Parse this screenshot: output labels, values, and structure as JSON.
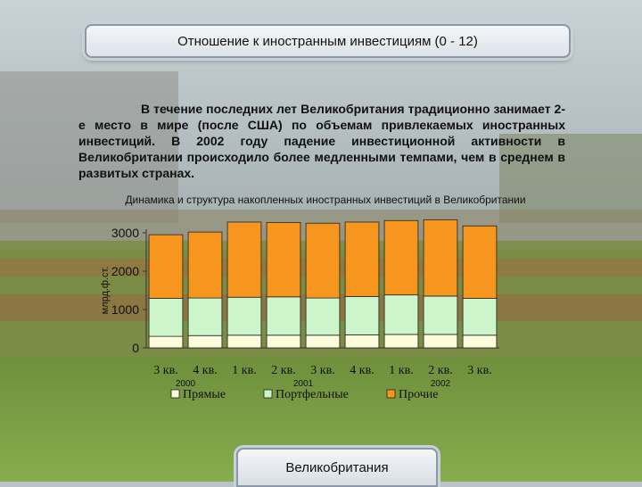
{
  "header": {
    "title": "Отношение к иностранным инвестициям (0 - 12)"
  },
  "intro_text": "В течение последних лет Великобритания традиционно занимает 2-е место в мире (после США) по объемам привлекаемых иностранных инвестиций. В 2002 году падение инвестиционной активности в Великобритании происходило более медленными темпами, чем в среднем в развитых странах.",
  "footer": {
    "label": "Великобритания"
  },
  "colors": {
    "direct": "#fcfcdc",
    "portfolio": "#ccf5cc",
    "other": "#f7961e"
  },
  "chart_data": {
    "type": "bar",
    "stacked": true,
    "title": "Динамика и структура накопленных иностранных инвестиций в Великобритании",
    "ylabel": "млрд.ф.ст.",
    "xlabel": "",
    "ylim": [
      0,
      3000
    ],
    "yticks": [
      0,
      1000,
      2000,
      3000
    ],
    "categories": [
      "3 кв.",
      "4 кв.",
      "1 кв.",
      "2 кв.",
      "3 кв.",
      "4 кв.",
      "1 кв.",
      "2 кв.",
      "3 кв."
    ],
    "groups": [
      {
        "label": "2000",
        "start": 0,
        "end": 1
      },
      {
        "label": "2001",
        "start": 2,
        "end": 5
      },
      {
        "label": "2002",
        "start": 6,
        "end": 8
      }
    ],
    "series": [
      {
        "name": "Прямые",
        "values": [
          300,
          320,
          330,
          330,
          330,
          340,
          350,
          350,
          330
        ]
      },
      {
        "name": "Портфельные",
        "values": [
          990,
          980,
          990,
          1000,
          970,
          1000,
          1030,
          1000,
          960
        ]
      },
      {
        "name": "Прочие",
        "values": [
          1660,
          1720,
          1960,
          1940,
          1950,
          1940,
          1940,
          1990,
          1890
        ]
      }
    ],
    "grid": false,
    "legend": "bottom"
  }
}
